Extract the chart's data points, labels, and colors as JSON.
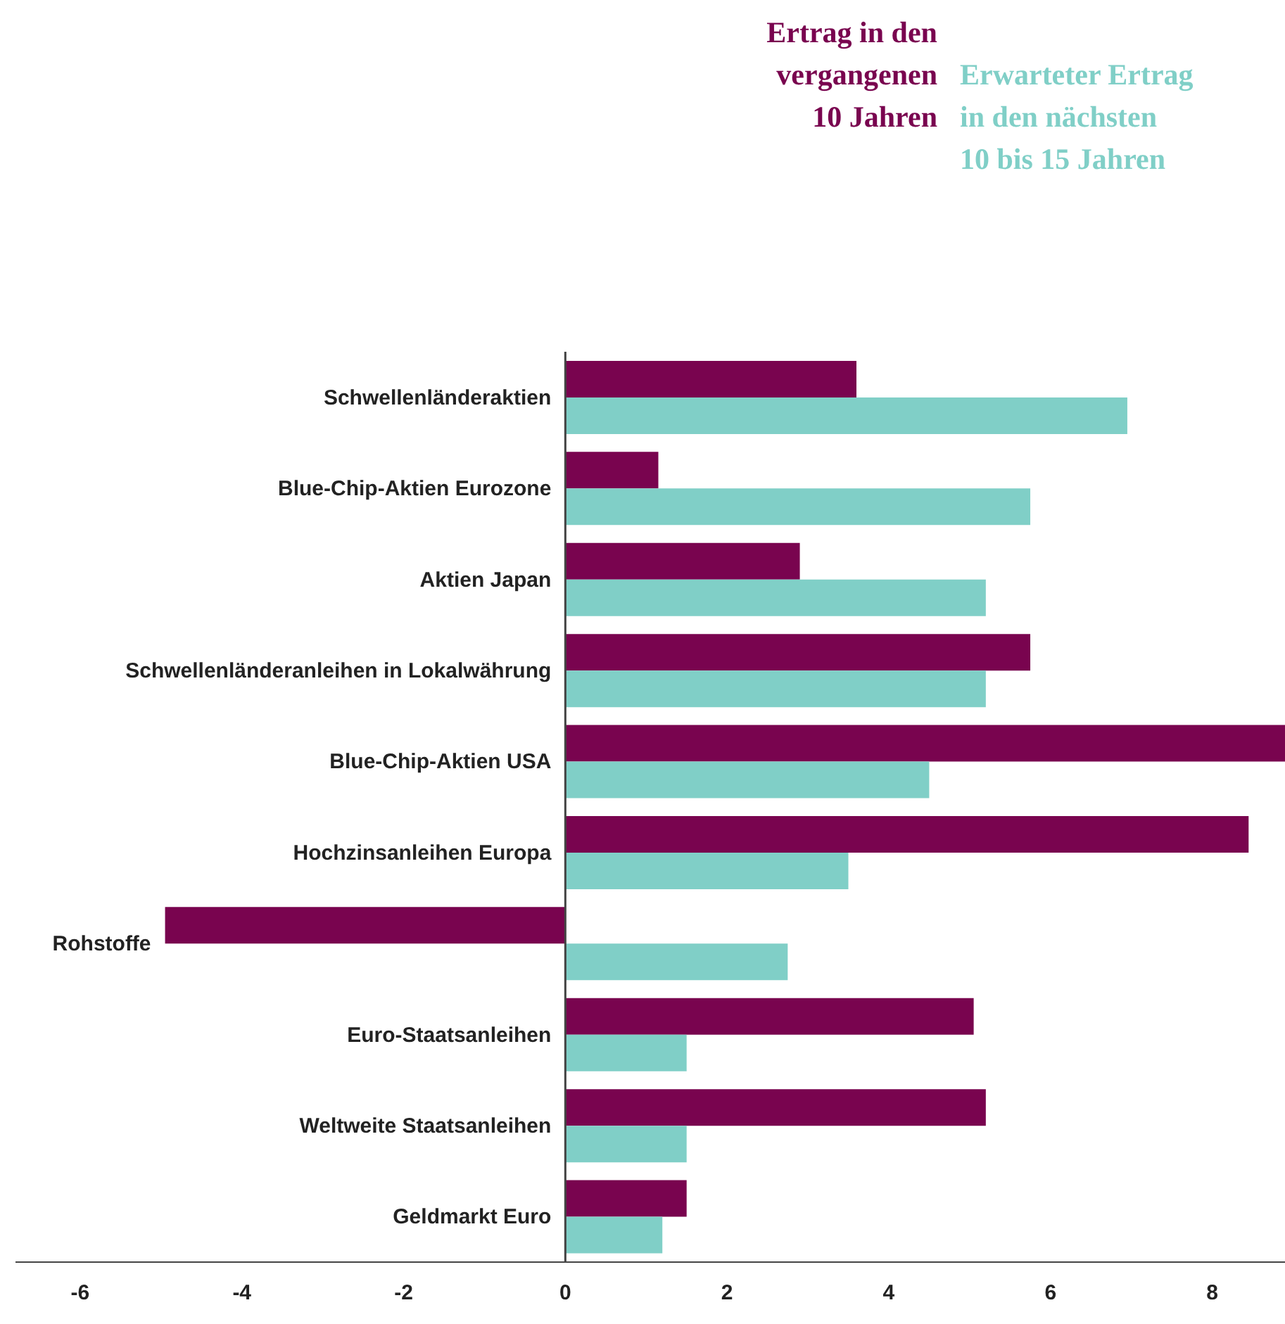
{
  "chart_data": {
    "type": "bar",
    "orientation": "horizontal",
    "categories": [
      "Schwellenländeraktien",
      "Blue-Chip-Aktien Eurozone",
      "Aktien Japan",
      "Schwellenländeranleihen in Lokalwährung",
      "Blue-Chip-Aktien USA",
      "Hochzinsanleihen Europa",
      "Rohstoffe",
      "Euro-Staatsanleihen",
      "Weltweite Staatsanleihen",
      "Geldmarkt Euro"
    ],
    "series": [
      {
        "name": "Ertrag in den vergangenen 10 Jahren",
        "color": "#79044f",
        "values": [
          3.6,
          1.15,
          2.9,
          5.75,
          8.9,
          8.45,
          -4.95,
          5.05,
          5.2,
          1.5
        ]
      },
      {
        "name": "Erwarteter Ertrag in den nächsten 10 bis 15 Jahren",
        "color": "#80cfc7",
        "values": [
          6.95,
          5.75,
          5.2,
          5.2,
          4.5,
          3.5,
          2.75,
          1.5,
          1.5,
          1.2
        ]
      }
    ],
    "xlim": [
      -6.8,
      8.9
    ],
    "xticks": [
      -6,
      -4,
      -2,
      0,
      2,
      4,
      6,
      8
    ],
    "grid": false,
    "legend": "top right"
  }
}
